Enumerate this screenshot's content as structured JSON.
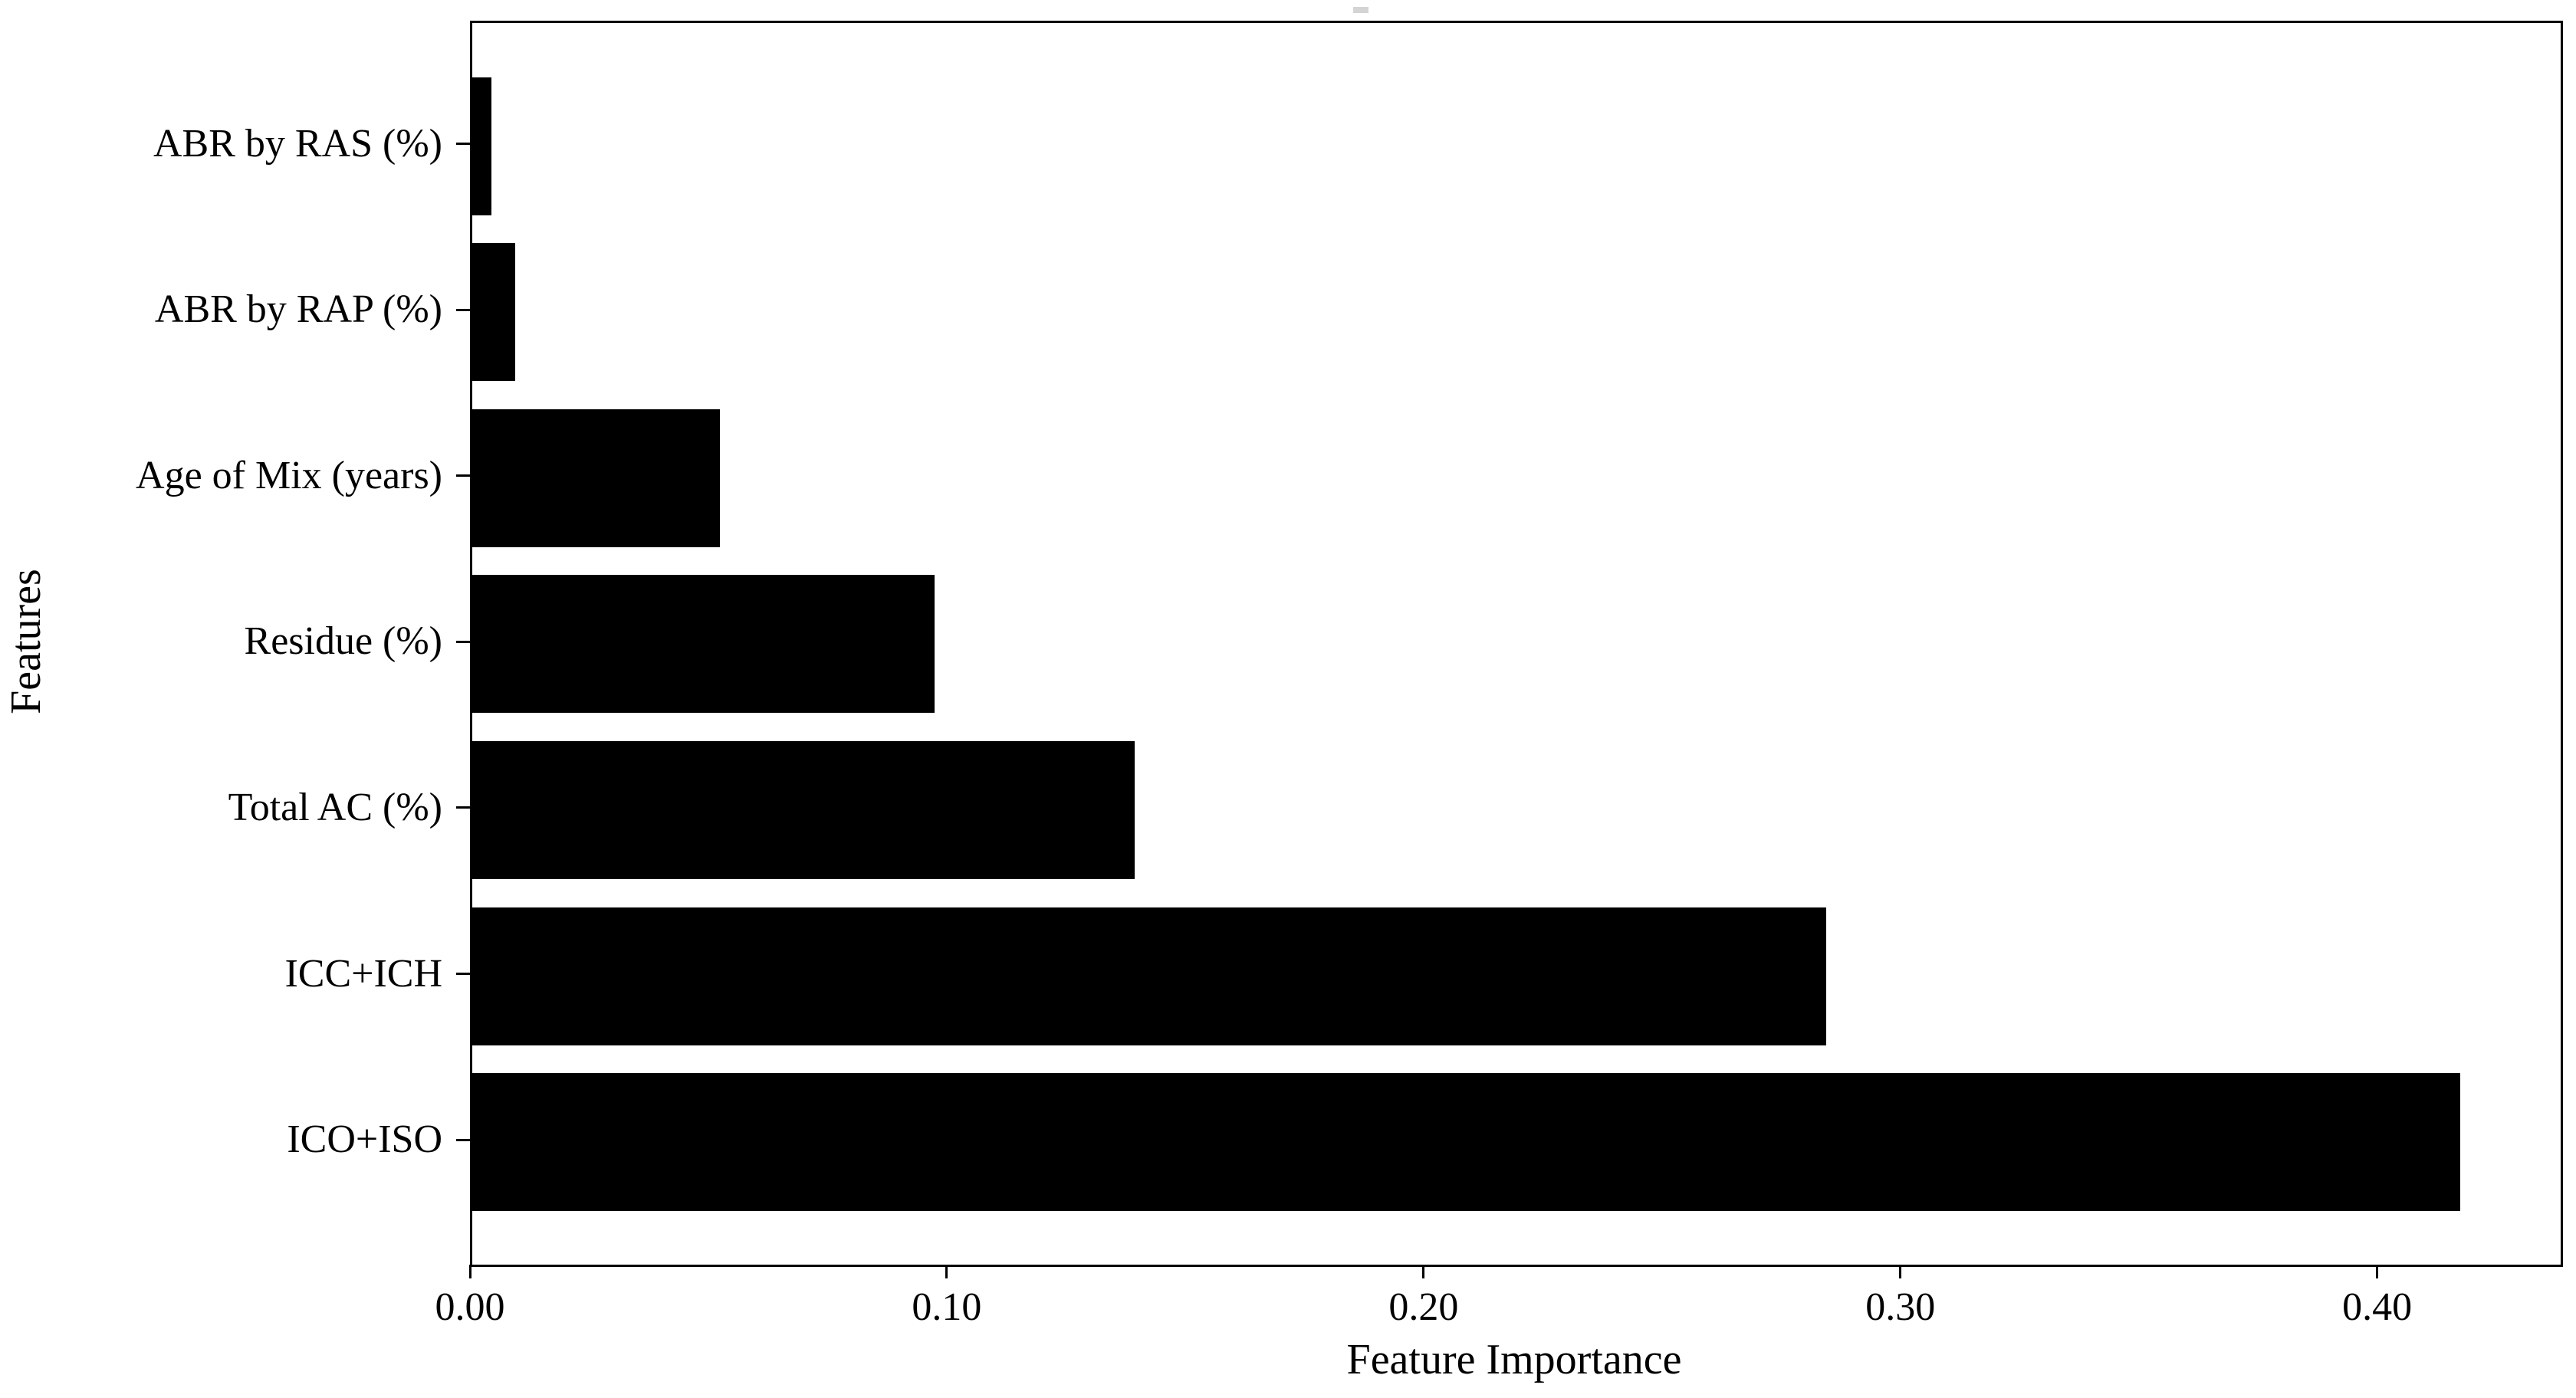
{
  "page": {
    "background": "#ffffff"
  },
  "chart_data": {
    "type": "bar",
    "orientation": "horizontal",
    "title": "",
    "xlabel": "Feature Importance",
    "ylabel": "Features",
    "category_order": "top-to-bottom",
    "categories": [
      "ABR by RAS (%)",
      "ABR by RAP (%)",
      "Age of Mix (years)",
      "Residue (%)",
      "Total AC (%)",
      "ICC+ICH",
      "ICO+ISO"
    ],
    "values": [
      0.004,
      0.009,
      0.052,
      0.097,
      0.139,
      0.284,
      0.417
    ],
    "xticks": {
      "labels": [
        "0.00",
        "0.10",
        "0.20",
        "0.30",
        "0.40"
      ],
      "values": [
        0.0,
        0.1,
        0.2,
        0.3,
        0.4
      ]
    },
    "xlim": [
      0,
      0.438
    ],
    "grid": false,
    "legend": false,
    "bar_color": "#000000",
    "axis_color": "#000000",
    "text_color": "#000000",
    "plot_background": "#ffffff"
  }
}
